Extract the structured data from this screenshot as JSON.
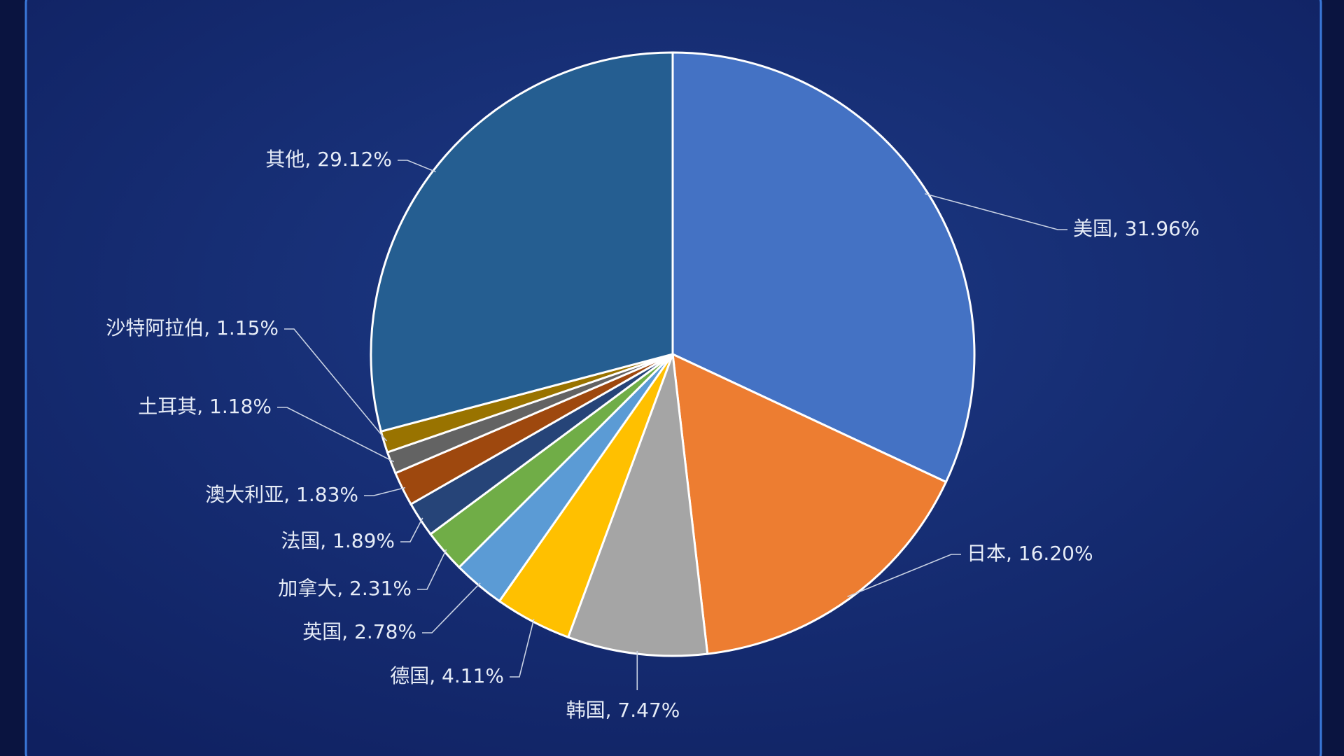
{
  "chart_data": {
    "type": "pie",
    "values": [
      31.96,
      16.2,
      7.47,
      4.11,
      2.78,
      2.31,
      1.89,
      1.83,
      1.18,
      1.15,
      29.12
    ],
    "value_labels": [
      "美国, 31.96%",
      "日本, 16.20%",
      "韩国, 7.47%",
      "德国, 4.11%",
      "英国, 2.78%",
      "加拿大, 2.31%",
      "法国, 1.89%",
      "澳大利亚, 1.83%",
      "土耳其, 1.18%",
      "沙特阿拉伯, 1.15%",
      "其他, 29.12%"
    ],
    "colors": [
      "#4472c4",
      "#ed7d31",
      "#a5a5a5",
      "#ffc000",
      "#5b9bd5",
      "#70ad47",
      "#264478",
      "#9e480e",
      "#636363",
      "#997300",
      "#255e91"
    ]
  }
}
